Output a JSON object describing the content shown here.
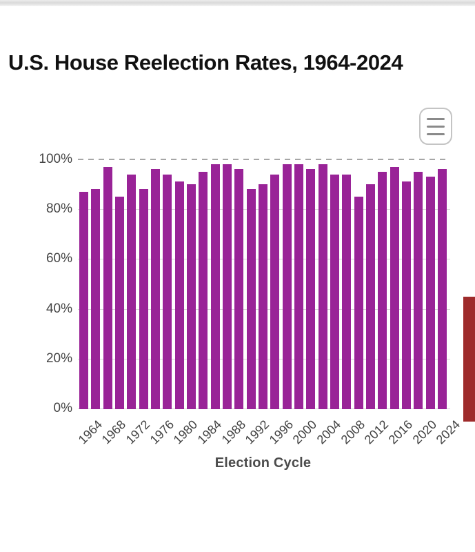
{
  "header": {
    "title": "U.S. House Reelection Rates, 1964-2024"
  },
  "menu": {
    "icon": "hamburger-menu-icon"
  },
  "chart_data": {
    "type": "bar",
    "title": "U.S. House Reelection Rates, 1964-2024",
    "xlabel": "Election Cycle",
    "ylabel": "",
    "categories": [
      "1964",
      "1966",
      "1968",
      "1970",
      "1972",
      "1974",
      "1976",
      "1978",
      "1980",
      "1982",
      "1984",
      "1986",
      "1988",
      "1990",
      "1992",
      "1994",
      "1996",
      "1998",
      "2000",
      "2002",
      "2004",
      "2006",
      "2008",
      "2010",
      "2012",
      "2014",
      "2016",
      "2018",
      "2020",
      "2022",
      "2024"
    ],
    "values": [
      87,
      88,
      97,
      85,
      94,
      88,
      96,
      94,
      91,
      90,
      95,
      98,
      98,
      96,
      88,
      90,
      94,
      98,
      98,
      96,
      98,
      94,
      94,
      85,
      90,
      95,
      97,
      91,
      95,
      93,
      96
    ],
    "ylim": [
      0,
      100
    ],
    "yticks": [
      0,
      20,
      40,
      60,
      80,
      100
    ],
    "ytick_suffix": "%",
    "xtick_label_every": 2,
    "grid": "horizontal",
    "top_gridline_style": "dashed",
    "legend": "none"
  },
  "colors": {
    "bar": "#992397",
    "gridline": "#d8d8d8",
    "dashed_gridline": "#a6a6a6",
    "axis_text": "#454545",
    "title_text": "#111111",
    "scroll_thumb": "#9e2b2b"
  },
  "scrollbar": {
    "orientation": "vertical",
    "side": "right"
  }
}
